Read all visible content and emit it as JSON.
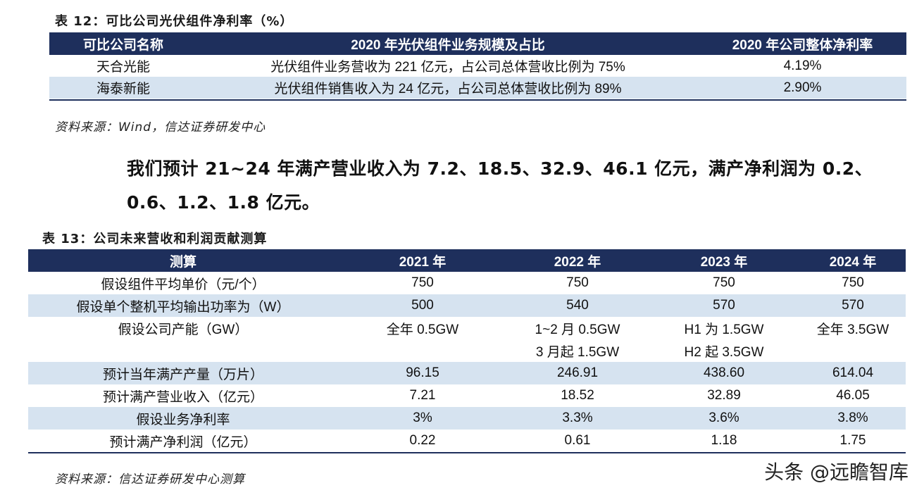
{
  "table12": {
    "caption": "表 12：可比公司光伏组件净利率（%）",
    "headers": [
      "可比公司名称",
      "2020 年光伏组件业务规模及占比",
      "2020 年公司整体净利率"
    ],
    "rows": [
      [
        "天合光能",
        "光伏组件业务营收为 221 亿元，占公司总体营收比例为 75%",
        "4.19%"
      ],
      [
        "海泰新能",
        "光伏组件销售收入为 24 亿元，占公司总体营收比例为 89%",
        "2.90%"
      ]
    ],
    "source": "资料来源：Wind，信达证券研发中心"
  },
  "paragraph": "我们预计 21~24 年满产营业收入为 7.2、18.5、32.9、46.1 亿元，满产净利润为 0.2、0.6、1.2、1.8 亿元。",
  "table13": {
    "caption": "表 13：公司未来营收和利润贡献测算",
    "headers": [
      "测算",
      "2021 年",
      "2022 年",
      "2023 年",
      "2024 年"
    ],
    "rows": [
      [
        "假设组件平均单价（元/个）",
        "750",
        "750",
        "750",
        "750"
      ],
      [
        "假设单个整机平均输出功率为（W）",
        "500",
        "540",
        "570",
        "570"
      ],
      [
        "假设公司产能（GW）",
        "全年 0.5GW",
        "1~2 月 0.5GW",
        "H1 为 1.5GW",
        "全年 3.5GW"
      ],
      [
        "",
        "",
        "3 月起 1.5GW",
        "H2 起 3.5GW",
        ""
      ],
      [
        "预计当年满产产量（万片）",
        "96.15",
        "246.91",
        "438.60",
        "614.04"
      ],
      [
        "预计满产营业收入（亿元）",
        "7.21",
        "18.52",
        "32.89",
        "46.05"
      ],
      [
        "假设业务净利率",
        "3%",
        "3.3%",
        "3.6%",
        "3.8%"
      ],
      [
        "预计满产净利润（亿元）",
        "0.22",
        "0.61",
        "1.18",
        "1.75"
      ]
    ],
    "source": "资料来源：信达证券研发中心测算"
  },
  "watermark": "头条 @远瞻智库",
  "colors": {
    "header_bg": "#1e2f5c",
    "row_shade": "#d6e3f0"
  }
}
